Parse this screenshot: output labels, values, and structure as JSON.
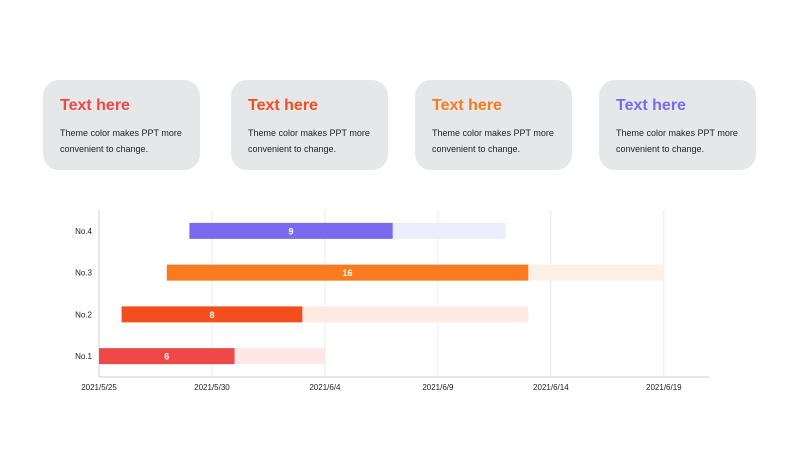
{
  "cards": [
    {
      "title": "Text here",
      "text": "Theme color makes PPT more convenient  to change.",
      "color": "#f04848"
    },
    {
      "title": "Text here",
      "text": "Theme color makes PPT more convenient  to change.",
      "color": "#f24e1e"
    },
    {
      "title": "Text here",
      "text": "Theme color makes PPT more convenient  to change.",
      "color": "#f97a1f"
    },
    {
      "title": "Text here",
      "text": "Theme color makes PPT more convenient  to change.",
      "color": "#7b6af0"
    }
  ],
  "chart_data": {
    "type": "bar",
    "orientation": "horizontal",
    "stacked": true,
    "categories": [
      "No.1",
      "No.2",
      "No.3",
      "No.4"
    ],
    "x_ticks": [
      "2021/5/25",
      "2021/5/30",
      "2021/6/4",
      "2021/6/9",
      "2021/6/14",
      "2021/6/19"
    ],
    "xlim": [
      "2021/5/25",
      "2021/6/21"
    ],
    "grid": true,
    "bars": [
      {
        "category": "No.1",
        "start": "2021/5/25",
        "duration_days": 6,
        "remaining_days": 4,
        "label": "6",
        "color": "#f04848",
        "light_color": "#fde7e7"
      },
      {
        "category": "No.2",
        "start": "2021/5/26",
        "duration_days": 8,
        "remaining_days": 10,
        "label": "8",
        "color": "#f24e1e",
        "light_color": "#fdeae3"
      },
      {
        "category": "No.3",
        "start": "2021/5/28",
        "duration_days": 16,
        "remaining_days": 6,
        "label": "16",
        "color": "#f97a1f",
        "light_color": "#fef0e6"
      },
      {
        "category": "No.4",
        "start": "2021/5/29",
        "duration_days": 9,
        "remaining_days": 5,
        "label": "9",
        "color": "#7b6af0",
        "light_color": "#eeedfd"
      }
    ]
  }
}
